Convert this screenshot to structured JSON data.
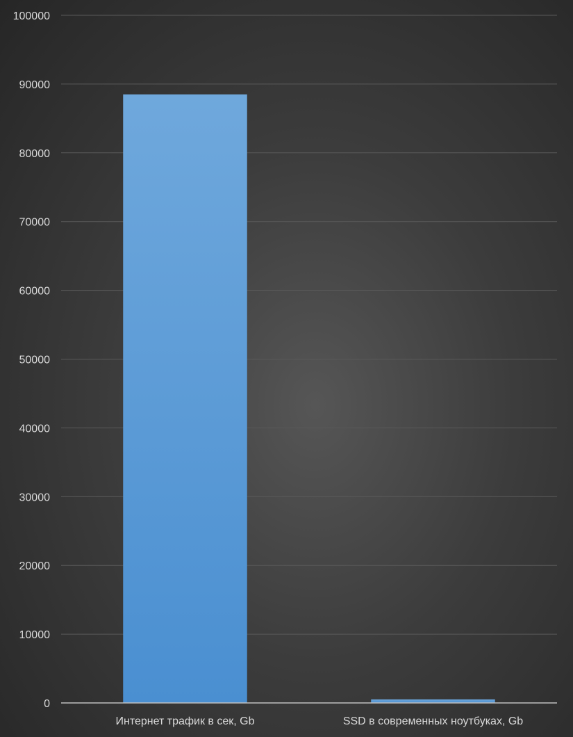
{
  "chart_data": {
    "type": "bar",
    "title": "",
    "xlabel": "",
    "ylabel": "",
    "categories": [
      "Интернет трафик в сек, Gb",
      "SSD в современных ноутбуках, Gb"
    ],
    "values": [
      88500,
      512
    ],
    "ylim": [
      0,
      100000
    ],
    "yticks": [
      "0",
      "10000",
      "20000",
      "30000",
      "40000",
      "50000",
      "60000",
      "70000",
      "80000",
      "90000",
      "100000"
    ],
    "grid": true,
    "legend": "none",
    "bar_color": "#5b9bd5"
  }
}
